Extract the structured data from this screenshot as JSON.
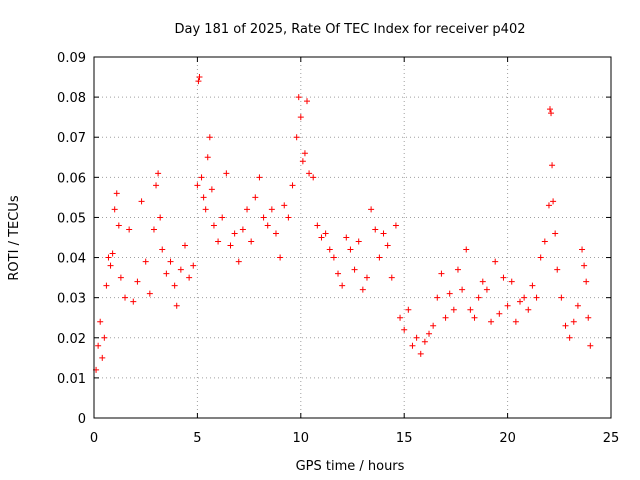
{
  "chart_data": {
    "type": "scatter",
    "title": "Day 181 of 2025, Rate Of TEC Index for receiver p402",
    "xlabel": "GPS time / hours",
    "ylabel": "ROTI / TECUs",
    "xlim": [
      0,
      25
    ],
    "ylim": [
      0,
      0.09
    ],
    "x_ticks": [
      "0",
      "5",
      "10",
      "15",
      "20",
      "25"
    ],
    "x_tick_values": [
      0,
      5,
      10,
      15,
      20,
      25
    ],
    "y_ticks": [
      "0",
      "0.01",
      "0.02",
      "0.03",
      "0.04",
      "0.05",
      "0.06",
      "0.07",
      "0.08",
      "0.09"
    ],
    "y_tick_values": [
      0,
      0.01,
      0.02,
      0.03,
      0.04,
      0.05,
      0.06,
      0.07,
      0.08,
      0.09
    ],
    "grid": true,
    "legend": "none",
    "marker": "plus",
    "color": "#ff0000",
    "x_range_of_data": [
      0,
      24
    ],
    "series": [
      {
        "points": [
          [
            0.1,
            0.012
          ],
          [
            0.2,
            0.018
          ],
          [
            0.3,
            0.024
          ],
          [
            0.4,
            0.015
          ],
          [
            0.5,
            0.02
          ],
          [
            0.6,
            0.033
          ],
          [
            0.7,
            0.04
          ],
          [
            0.8,
            0.038
          ],
          [
            0.9,
            0.041
          ],
          [
            1.0,
            0.052
          ],
          [
            1.1,
            0.056
          ],
          [
            1.2,
            0.048
          ],
          [
            1.3,
            0.035
          ],
          [
            1.5,
            0.03
          ],
          [
            1.7,
            0.047
          ],
          [
            1.9,
            0.029
          ],
          [
            2.1,
            0.034
          ],
          [
            2.3,
            0.054
          ],
          [
            2.5,
            0.039
          ],
          [
            2.7,
            0.031
          ],
          [
            2.9,
            0.047
          ],
          [
            3.0,
            0.058
          ],
          [
            3.1,
            0.061
          ],
          [
            3.2,
            0.05
          ],
          [
            3.3,
            0.042
          ],
          [
            3.5,
            0.036
          ],
          [
            3.7,
            0.039
          ],
          [
            3.9,
            0.033
          ],
          [
            4.0,
            0.028
          ],
          [
            4.2,
            0.037
          ],
          [
            4.4,
            0.043
          ],
          [
            4.6,
            0.035
          ],
          [
            4.8,
            0.038
          ],
          [
            5.0,
            0.058
          ],
          [
            5.05,
            0.084
          ],
          [
            5.1,
            0.085
          ],
          [
            5.2,
            0.06
          ],
          [
            5.3,
            0.055
          ],
          [
            5.4,
            0.052
          ],
          [
            5.5,
            0.065
          ],
          [
            5.6,
            0.07
          ],
          [
            5.7,
            0.057
          ],
          [
            5.8,
            0.048
          ],
          [
            6.0,
            0.044
          ],
          [
            6.2,
            0.05
          ],
          [
            6.4,
            0.061
          ],
          [
            6.6,
            0.043
          ],
          [
            6.8,
            0.046
          ],
          [
            7.0,
            0.039
          ],
          [
            7.2,
            0.047
          ],
          [
            7.4,
            0.052
          ],
          [
            7.6,
            0.044
          ],
          [
            7.8,
            0.055
          ],
          [
            8.0,
            0.06
          ],
          [
            8.2,
            0.05
          ],
          [
            8.4,
            0.048
          ],
          [
            8.6,
            0.052
          ],
          [
            8.8,
            0.046
          ],
          [
            9.0,
            0.04
          ],
          [
            9.2,
            0.053
          ],
          [
            9.4,
            0.05
          ],
          [
            9.6,
            0.058
          ],
          [
            9.8,
            0.07
          ],
          [
            9.9,
            0.08
          ],
          [
            10.0,
            0.075
          ],
          [
            10.1,
            0.064
          ],
          [
            10.2,
            0.066
          ],
          [
            10.3,
            0.079
          ],
          [
            10.4,
            0.061
          ],
          [
            10.6,
            0.06
          ],
          [
            10.8,
            0.048
          ],
          [
            11.0,
            0.045
          ],
          [
            11.2,
            0.046
          ],
          [
            11.4,
            0.042
          ],
          [
            11.6,
            0.04
          ],
          [
            11.8,
            0.036
          ],
          [
            12.0,
            0.033
          ],
          [
            12.2,
            0.045
          ],
          [
            12.4,
            0.042
          ],
          [
            12.6,
            0.037
          ],
          [
            12.8,
            0.044
          ],
          [
            13.0,
            0.032
          ],
          [
            13.2,
            0.035
          ],
          [
            13.4,
            0.052
          ],
          [
            13.6,
            0.047
          ],
          [
            13.8,
            0.04
          ],
          [
            14.0,
            0.046
          ],
          [
            14.2,
            0.043
          ],
          [
            14.4,
            0.035
          ],
          [
            14.6,
            0.048
          ],
          [
            14.8,
            0.025
          ],
          [
            15.0,
            0.022
          ],
          [
            15.2,
            0.027
          ],
          [
            15.4,
            0.018
          ],
          [
            15.6,
            0.02
          ],
          [
            15.8,
            0.016
          ],
          [
            16.0,
            0.019
          ],
          [
            16.2,
            0.021
          ],
          [
            16.4,
            0.023
          ],
          [
            16.6,
            0.03
          ],
          [
            16.8,
            0.036
          ],
          [
            17.0,
            0.025
          ],
          [
            17.2,
            0.031
          ],
          [
            17.4,
            0.027
          ],
          [
            17.6,
            0.037
          ],
          [
            17.8,
            0.032
          ],
          [
            18.0,
            0.042
          ],
          [
            18.2,
            0.027
          ],
          [
            18.4,
            0.025
          ],
          [
            18.6,
            0.03
          ],
          [
            18.8,
            0.034
          ],
          [
            19.0,
            0.032
          ],
          [
            19.2,
            0.024
          ],
          [
            19.4,
            0.039
          ],
          [
            19.6,
            0.026
          ],
          [
            19.8,
            0.035
          ],
          [
            20.0,
            0.028
          ],
          [
            20.2,
            0.034
          ],
          [
            20.4,
            0.024
          ],
          [
            20.6,
            0.029
          ],
          [
            20.8,
            0.03
          ],
          [
            21.0,
            0.027
          ],
          [
            21.2,
            0.033
          ],
          [
            21.4,
            0.03
          ],
          [
            21.6,
            0.04
          ],
          [
            21.8,
            0.044
          ],
          [
            22.0,
            0.053
          ],
          [
            22.05,
            0.077
          ],
          [
            22.1,
            0.076
          ],
          [
            22.15,
            0.063
          ],
          [
            22.2,
            0.054
          ],
          [
            22.3,
            0.046
          ],
          [
            22.4,
            0.037
          ],
          [
            22.6,
            0.03
          ],
          [
            22.8,
            0.023
          ],
          [
            23.0,
            0.02
          ],
          [
            23.2,
            0.024
          ],
          [
            23.4,
            0.028
          ],
          [
            23.6,
            0.042
          ],
          [
            23.7,
            0.038
          ],
          [
            23.8,
            0.034
          ],
          [
            23.9,
            0.025
          ],
          [
            24.0,
            0.018
          ]
        ]
      }
    ]
  }
}
